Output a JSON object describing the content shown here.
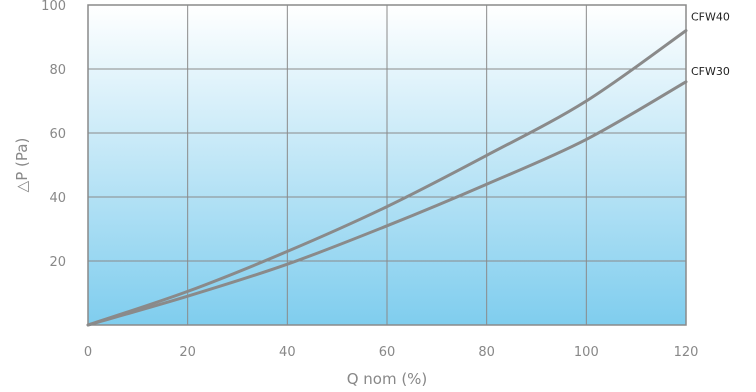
{
  "chart_data": {
    "type": "line",
    "xlabel": "Q nom (%)",
    "ylabel": "△P (Pa)",
    "xlim": [
      0,
      120
    ],
    "ylim": [
      0,
      100
    ],
    "x_ticks": [
      "0",
      "20",
      "40",
      "60",
      "80",
      "100",
      "120"
    ],
    "y_ticks": [
      "20",
      "40",
      "60",
      "80",
      "100"
    ],
    "grid": true,
    "background": {
      "top": "#ffffff",
      "bottom": "#7fcdee"
    },
    "line_color": "#8a8a8a",
    "series": [
      {
        "name": "CFW40",
        "x": [
          0,
          20,
          40,
          60,
          80,
          100,
          120
        ],
        "y": [
          0,
          10.5,
          23,
          37,
          53,
          70,
          92
        ]
      },
      {
        "name": "CFW30",
        "x": [
          0,
          20,
          40,
          60,
          80,
          100,
          120
        ],
        "y": [
          0,
          9,
          19,
          31,
          44,
          58,
          76
        ]
      }
    ]
  }
}
